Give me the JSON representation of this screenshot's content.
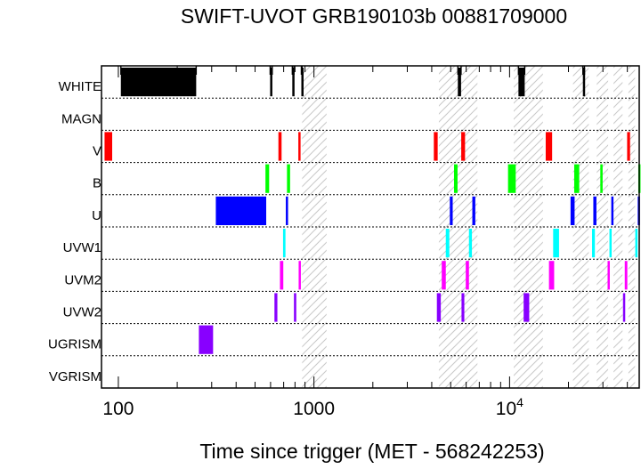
{
  "chart_data": {
    "type": "bar",
    "title": "SWIFT-UVOT GRB190103b 00881709000",
    "xlabel": "Time since trigger (MET - 568242253)",
    "ylabel": "",
    "xscale": "log",
    "xlim": [
      82,
      46000
    ],
    "grid": false,
    "rows": [
      "WHITE",
      "MAGN",
      "V",
      "B",
      "U",
      "UVW1",
      "UVM2",
      "UVW2",
      "UGRISM",
      "VGRISM"
    ],
    "x_ticks": [
      100,
      1000,
      10000
    ],
    "x_tick_labels": [
      {
        "base": "100",
        "exp": ""
      },
      {
        "base": "1000",
        "exp": ""
      },
      {
        "base": "10",
        "exp": "4"
      }
    ],
    "gaps": [
      [
        870,
        1160
      ],
      [
        4350,
        6850
      ],
      [
        10500,
        14800
      ],
      [
        21100,
        25400
      ],
      [
        27900,
        31900
      ],
      [
        34000,
        37800
      ],
      [
        40500,
        43800
      ]
    ],
    "series": [
      {
        "name": "WHITE",
        "color": "#000000",
        "intervals": [
          [
            103,
            250
          ],
          [
            597,
            612
          ],
          [
            775,
            790
          ],
          [
            862,
            869
          ],
          [
            5440,
            5650
          ],
          [
            11100,
            11950
          ],
          [
            23700,
            24150
          ]
        ]
      },
      {
        "name": "MAGN",
        "color": "#000000",
        "intervals": []
      },
      {
        "name": "V",
        "color": "#ff0000",
        "intervals": [
          [
            85,
            93
          ],
          [
            658,
            683
          ],
          [
            832,
            854
          ],
          [
            4100,
            4290
          ],
          [
            5660,
            5920
          ],
          [
            15300,
            16500
          ],
          [
            39900,
            41300
          ]
        ]
      },
      {
        "name": "B",
        "color": "#00ff00",
        "intervals": [
          [
            565,
            590
          ],
          [
            728,
            755
          ],
          [
            5200,
            5420
          ],
          [
            9820,
            10750
          ],
          [
            21400,
            22700
          ],
          [
            29100,
            29900
          ],
          [
            45500,
            46000
          ]
        ]
      },
      {
        "name": "U",
        "color": "#0000ff",
        "intervals": [
          [
            315,
            570
          ],
          [
            718,
            735
          ],
          [
            4950,
            5120
          ],
          [
            6450,
            6680
          ],
          [
            20500,
            21500
          ],
          [
            26800,
            27800
          ],
          [
            33100,
            33900
          ],
          [
            45200,
            46000
          ]
        ]
      },
      {
        "name": "UVW1",
        "color": "#00ffff",
        "intervals": [
          [
            695,
            715
          ],
          [
            4720,
            4920
          ],
          [
            6200,
            6420
          ],
          [
            16700,
            17900
          ],
          [
            26400,
            27300
          ],
          [
            32400,
            33200
          ],
          [
            43900,
            45100
          ]
        ]
      },
      {
        "name": "UVM2",
        "color": "#ff00ff",
        "intervals": [
          [
            670,
            697
          ],
          [
            835,
            857
          ],
          [
            4500,
            4720
          ],
          [
            5970,
            6200
          ],
          [
            15900,
            16900
          ],
          [
            31700,
            32500
          ],
          [
            38800,
            40000
          ]
        ]
      },
      {
        "name": "UVW2",
        "color": "#8800ff",
        "intervals": [
          [
            628,
            650
          ],
          [
            790,
            812
          ],
          [
            4250,
            4450
          ],
          [
            5680,
            5870
          ],
          [
            11800,
            12600
          ],
          [
            38000,
            38900
          ]
        ]
      },
      {
        "name": "UGRISM",
        "color": "#8800ff",
        "intervals": [
          [
            258,
            305
          ]
        ]
      },
      {
        "name": "VGRISM",
        "color": "#8800ff",
        "intervals": []
      }
    ],
    "white_top_ticks": [
      103,
      250,
      597,
      612,
      775,
      790,
      862,
      869,
      5440,
      5650,
      11100,
      11950,
      23700,
      24150
    ]
  }
}
